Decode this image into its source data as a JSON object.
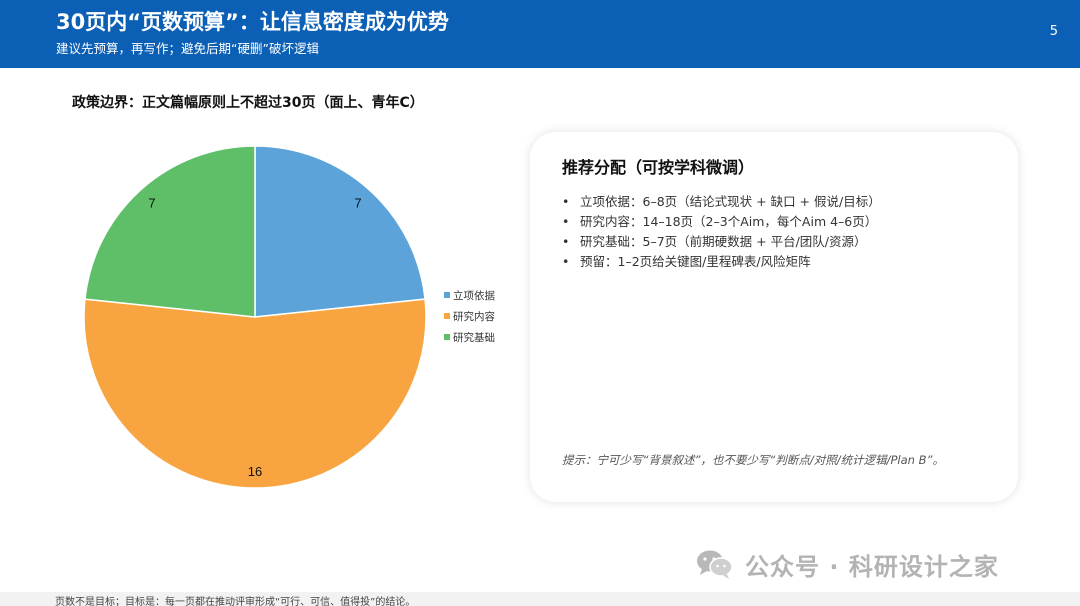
{
  "header": {
    "title": "30页内“页数预算”：让信息密度成为优势",
    "subtitle": "建议先预算，再写作；避免后期“硬删”破坏逻辑",
    "page_number": "5"
  },
  "policy_line": "政策边界：正文篇幅原则上不超过30页（面上、青年C）",
  "chart_data": {
    "type": "pie",
    "categories": [
      "立项依据",
      "研究内容",
      "研究基础"
    ],
    "values": [
      7,
      16,
      7
    ],
    "colors": [
      "#5ba3d9",
      "#f8a541",
      "#5fbf69"
    ],
    "data_labels": [
      "7",
      "16",
      "7"
    ],
    "legend": {
      "position": "right",
      "entries": [
        "立项依据",
        "研究内容",
        "研究基础"
      ]
    }
  },
  "card": {
    "title": "推荐分配（可按学科微调）",
    "items": [
      "立项依据：6–8页（结论式现状 + 缺口 + 假说/目标）",
      "研究内容：14–18页（2–3个Aim，每个Aim 4–6页）",
      "研究基础：5–7页（前期硬数据 + 平台/团队/资源）",
      "预留：1–2页给关键图/里程碑表/风险矩阵"
    ],
    "tip": "提示：宁可少写“背景叙述”，也不要少写“判断点/对照/统计逻辑/Plan B”。"
  },
  "watermark": {
    "text": "公众号 · 科研设计之家",
    "icon": "wechat-icon"
  },
  "footer": {
    "text": "页数不是目标；目标是：每一页都在推动评审形成“可行、可信、值得投”的结论。"
  }
}
